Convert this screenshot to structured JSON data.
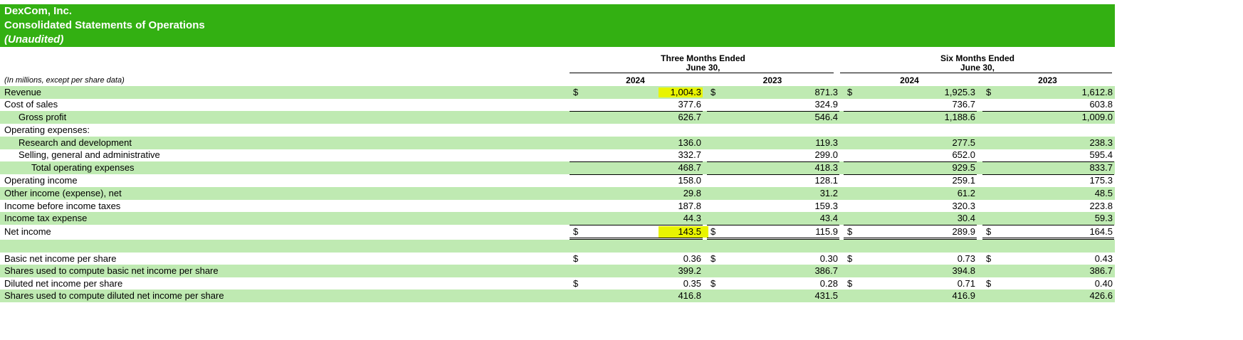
{
  "header": {
    "company": "DexCom, Inc.",
    "title": "Consolidated Statements of Operations",
    "subtitle": "(Unaudited)"
  },
  "table": {
    "units_note": "(In millions, except per share data)",
    "groups": [
      {
        "label": "Three Months Ended",
        "sublabel": "June 30,"
      },
      {
        "label": "Six Months Ended",
        "sublabel": "June 30,"
      }
    ],
    "years": [
      "2024",
      "2023",
      "2024",
      "2023"
    ],
    "rows": [
      {
        "label": "Revenue",
        "currency": "$",
        "values": [
          "1,004.3",
          "871.3",
          "1,925.3",
          "1,612.8"
        ]
      },
      {
        "label": "Cost of sales",
        "values": [
          "377.6",
          "324.9",
          "736.7",
          "603.8"
        ]
      },
      {
        "label": "Gross profit",
        "values": [
          "626.7",
          "546.4",
          "1,188.6",
          "1,009.0"
        ]
      },
      {
        "label": "Operating expenses:"
      },
      {
        "label": "Research and development",
        "values": [
          "136.0",
          "119.3",
          "277.5",
          "238.3"
        ]
      },
      {
        "label": "Selling, general and administrative",
        "values": [
          "332.7",
          "299.0",
          "652.0",
          "595.4"
        ]
      },
      {
        "label": "Total operating expenses",
        "values": [
          "468.7",
          "418.3",
          "929.5",
          "833.7"
        ]
      },
      {
        "label": "Operating income",
        "values": [
          "158.0",
          "128.1",
          "259.1",
          "175.3"
        ]
      },
      {
        "label": "Other income (expense), net",
        "values": [
          "29.8",
          "31.2",
          "61.2",
          "48.5"
        ]
      },
      {
        "label": "Income before income taxes",
        "values": [
          "187.8",
          "159.3",
          "320.3",
          "223.8"
        ]
      },
      {
        "label": "Income tax expense",
        "values": [
          "44.3",
          "43.4",
          "30.4",
          "59.3"
        ]
      },
      {
        "label": "Net income",
        "currency": "$",
        "values": [
          "143.5",
          "115.9",
          "289.9",
          "164.5"
        ]
      },
      {},
      {
        "label": "Basic net income per share",
        "currency": "$",
        "values": [
          "0.36",
          "0.30",
          "0.73",
          "0.43"
        ]
      },
      {
        "label": "Shares used to compute basic net income per share",
        "values": [
          "399.2",
          "386.7",
          "394.8",
          "386.7"
        ]
      },
      {
        "label": "Diluted net income per share",
        "currency": "$",
        "values": [
          "0.35",
          "0.28",
          "0.71",
          "0.40"
        ]
      },
      {
        "label": "Shares used to compute diluted net income per share",
        "values": [
          "416.8",
          "431.5",
          "416.9",
          "426.6"
        ]
      }
    ]
  }
}
